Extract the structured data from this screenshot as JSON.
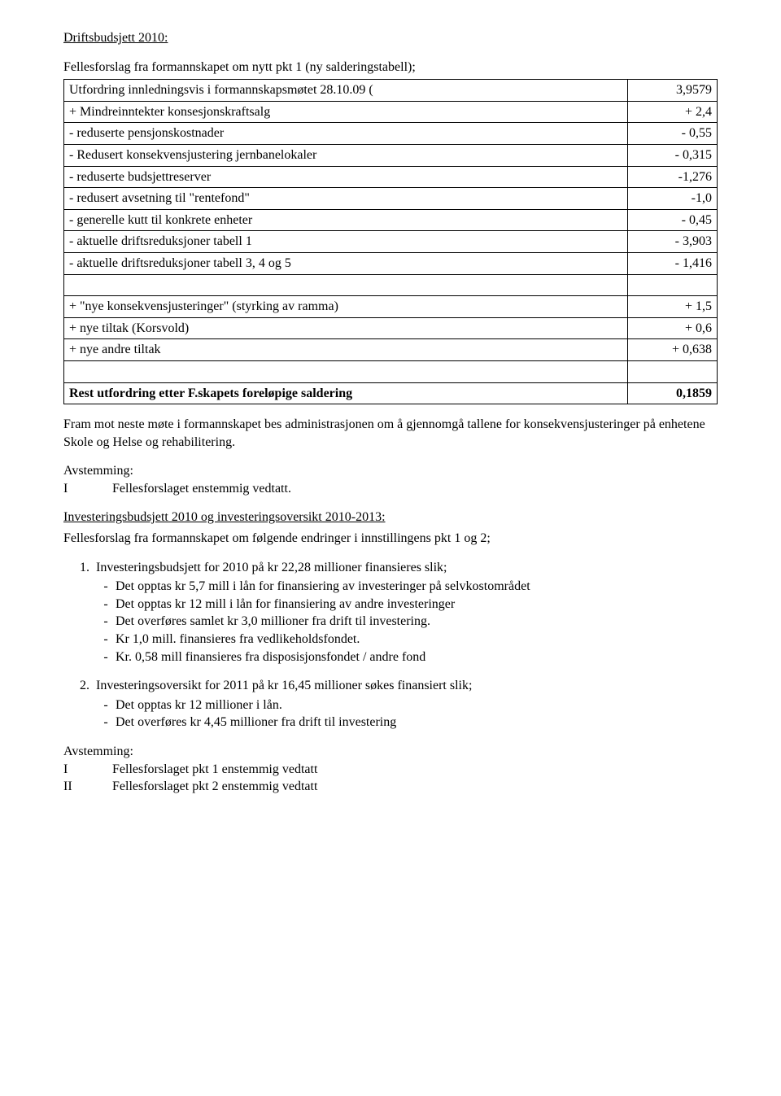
{
  "heading1": "Driftsbudsjett 2010:",
  "intro": "Fellesforslag fra formannskapet om nytt pkt 1 (ny salderingstabell);",
  "table": {
    "rows": [
      {
        "label": "Utfordring innledningsvis i formannskapsmøtet 28.10.09 (",
        "value": "3,9579",
        "bold": false
      },
      {
        "label": "+ Mindreinntekter konsesjonskraftsalg",
        "value": "+ 2,4",
        "bold": false
      },
      {
        "label": "- reduserte pensjonskostnader",
        "value": "- 0,55",
        "bold": false
      },
      {
        "label": "- Redusert konsekvensjustering jernbanelokaler",
        "value": "- 0,315",
        "bold": false
      },
      {
        "label": "- reduserte budsjettreserver",
        "value": "-1,276",
        "bold": false
      },
      {
        "label": "- redusert avsetning til \"rentefond\"",
        "value": "-1,0",
        "bold": false
      },
      {
        "label": "- generelle kutt til konkrete enheter",
        "value": "- 0,45",
        "bold": false
      },
      {
        "label": "- aktuelle driftsreduksjoner tabell 1",
        "value": "- 3,903",
        "bold": false
      },
      {
        "label": "- aktuelle driftsreduksjoner tabell 3, 4 og 5",
        "value": "- 1,416",
        "bold": false
      },
      {
        "label": "",
        "value": "",
        "bold": false
      },
      {
        "label": "+ \"nye konsekvensjusteringer\" (styrking av ramma)",
        "value": "+ 1,5",
        "bold": false
      },
      {
        "label": "+ nye tiltak (Korsvold)",
        "value": "+ 0,6",
        "bold": false
      },
      {
        "label": "+ nye andre tiltak",
        "value": "+ 0,638",
        "bold": false
      },
      {
        "label": "",
        "value": "",
        "bold": false
      },
      {
        "label": "Rest utfordring etter F.skapets foreløpige saldering",
        "value": "0,1859",
        "bold": true
      }
    ]
  },
  "para_after_table": "Fram mot neste møte i formannskapet bes administrasjonen om å gjennomgå tallene for konsekvensjusteringer på enhetene Skole og Helse og rehabilitering.",
  "voting1": {
    "header": "Avstemming:",
    "lines": [
      {
        "col1": "I",
        "col2": "Fellesforslaget enstemmig vedtatt."
      }
    ]
  },
  "heading2": "Investeringsbudsjett 2010 og investeringsoversikt 2010-2013:",
  "intro2": "Fellesforslag fra formannskapet om følgende endringer i innstillingens pkt 1 og 2;",
  "list": [
    {
      "head": "Investeringsbudsjett for 2010 på kr 22,28 millioner finansieres slik;",
      "sub": [
        "Det opptas kr 5,7 mill i lån for finansiering av investeringer på selvkostområdet",
        "Det opptas kr 12 mill i lån for finansiering av andre investeringer",
        "Det overføres samlet kr 3,0 millioner fra drift til investering.",
        "Kr 1,0 mill. finansieres fra vedlikeholdsfondet.",
        "Kr. 0,58 mill finansieres fra disposisjonsfondet / andre fond"
      ]
    },
    {
      "head": "Investeringsoversikt for 2011 på kr 16,45 millioner søkes finansiert slik;",
      "sub": [
        "Det opptas kr 12 millioner i lån.",
        "Det overføres kr 4,45 millioner fra drift til investering"
      ]
    }
  ],
  "voting2": {
    "header": "Avstemming:",
    "lines": [
      {
        "col1": "I",
        "col2": "Fellesforslaget pkt 1 enstemmig vedtatt"
      },
      {
        "col1": "II",
        "col2": "Fellesforslaget pkt 2 enstemmig vedtatt"
      }
    ]
  }
}
